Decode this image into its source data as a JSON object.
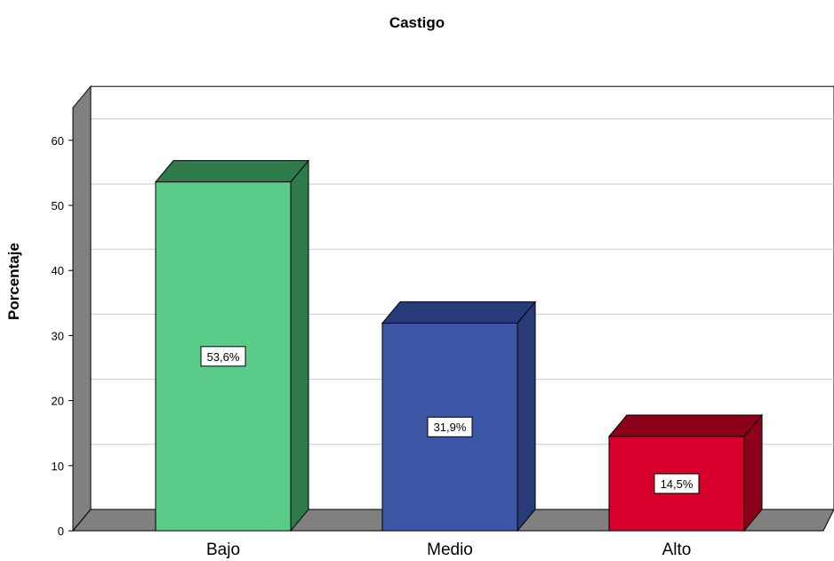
{
  "chart_data": {
    "type": "bar",
    "title": "Castigo",
    "xlabel": "",
    "ylabel": "Porcentaje",
    "categories": [
      "Bajo",
      "Medio",
      "Alto"
    ],
    "values": [
      53.6,
      31.9,
      14.5
    ],
    "data_labels": [
      "53,6%",
      "31,9%",
      "14,5%"
    ],
    "ylim": [
      0,
      65
    ],
    "yticks": [
      0,
      10,
      20,
      30,
      40,
      50,
      60
    ],
    "grid": true,
    "three_d": true,
    "colors": {
      "front": [
        "#5bcb8a",
        "#3c56a5",
        "#d6002a"
      ],
      "top": [
        "#2f7a4b",
        "#273b78",
        "#8d0019"
      ],
      "side": [
        "#2f7a4b",
        "#273b78",
        "#8d0019"
      ],
      "wall": "#808080",
      "grid": "#c8c8c8"
    }
  }
}
